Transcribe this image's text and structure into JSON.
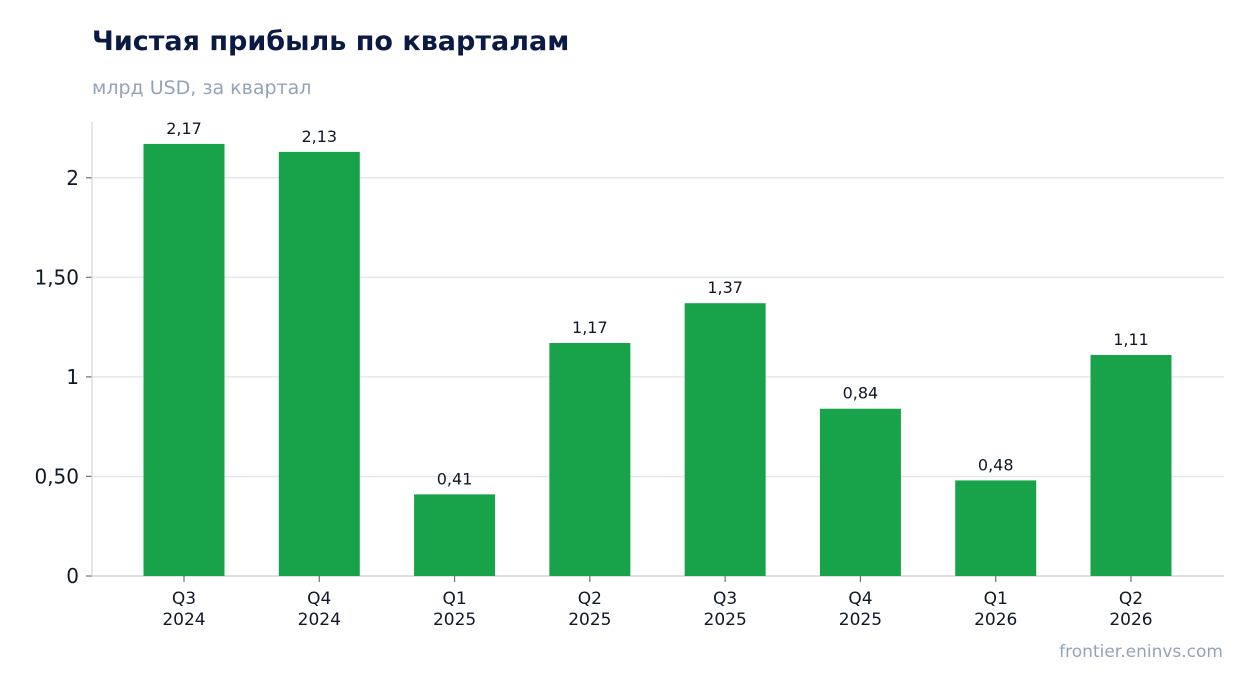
{
  "title": "Чистая прибыль по кварталам",
  "subtitle": "млрд USD, за квартал",
  "source": "frontier.eninvs.com",
  "colors": {
    "bar": "#18a34a",
    "grid": "#e5e7eb",
    "axis": "#d1d5db",
    "title": "#0b1a45",
    "muted": "#94a3b8"
  },
  "chart_data": {
    "type": "bar",
    "categories": [
      [
        "Q3",
        "2024"
      ],
      [
        "Q4",
        "2024"
      ],
      [
        "Q1",
        "2025"
      ],
      [
        "Q2",
        "2025"
      ],
      [
        "Q3",
        "2025"
      ],
      [
        "Q4",
        "2025"
      ],
      [
        "Q1",
        "2026"
      ],
      [
        "Q2",
        "2026"
      ]
    ],
    "values": [
      2.17,
      2.13,
      0.41,
      1.17,
      1.37,
      0.84,
      0.48,
      1.11
    ],
    "data_labels": [
      "2,17",
      "2,13",
      "0,41",
      "1,17",
      "1,37",
      "0,84",
      "0,48",
      "1,11"
    ],
    "yticks": [
      0,
      0.5,
      1,
      1.5,
      2
    ],
    "ytick_labels": [
      "0",
      "0,50",
      "1",
      "1,50",
      "2"
    ],
    "ylim": [
      0,
      2.28
    ],
    "grid": true,
    "legend": "none"
  }
}
